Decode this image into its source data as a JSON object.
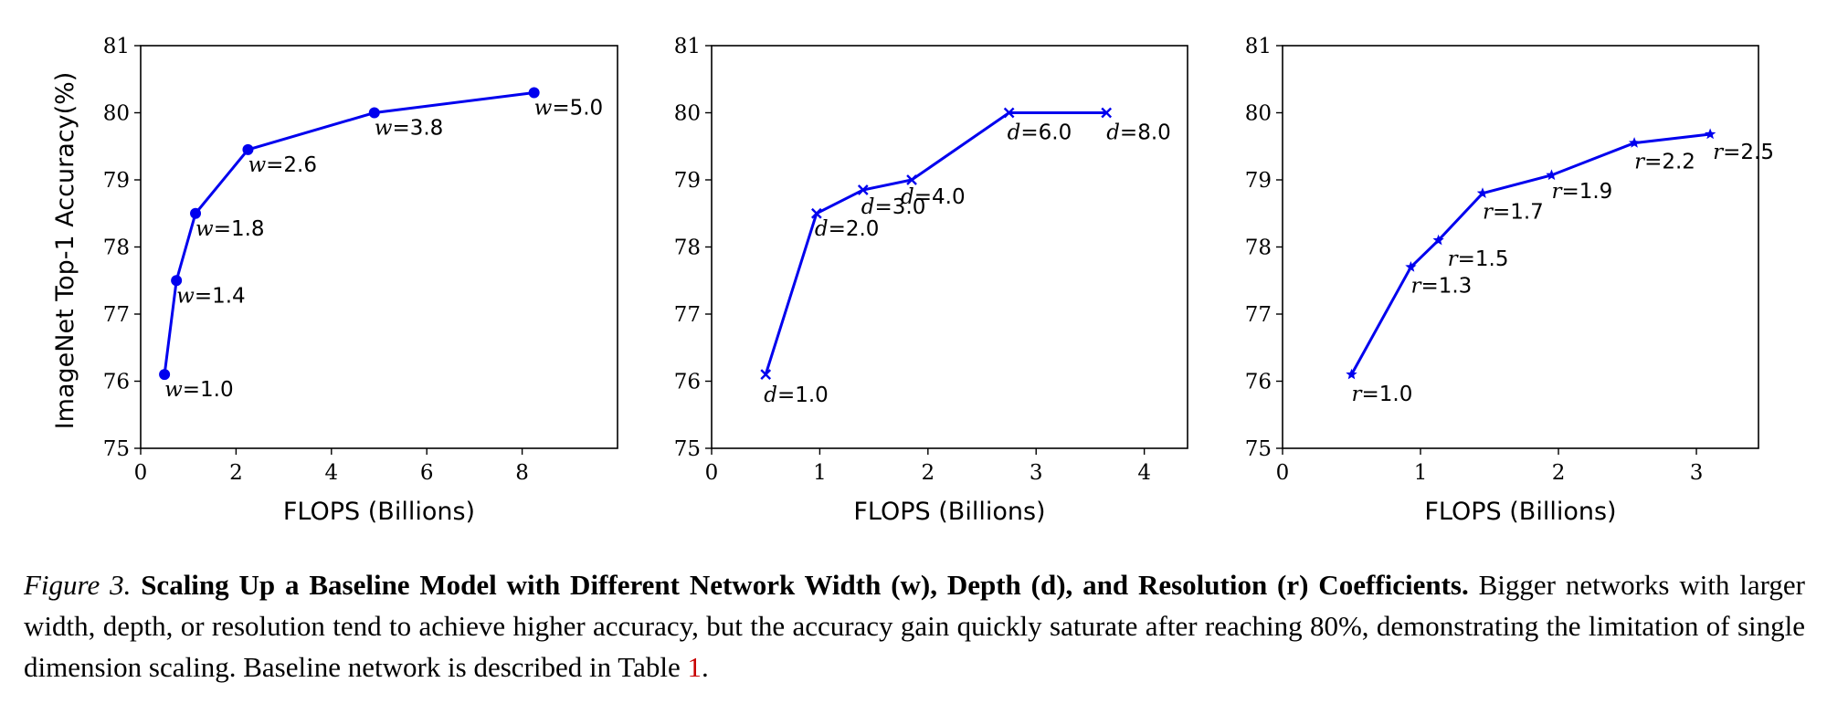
{
  "chart_data": [
    {
      "type": "line",
      "marker": "circle",
      "xlabel": "FLOPS (Billions)",
      "ylabel": "ImageNet Top-1 Accuracy(%)",
      "xlim": [
        0,
        10
      ],
      "ylim": [
        75,
        81
      ],
      "xticks": [
        0,
        2,
        4,
        6,
        8
      ],
      "yticks": [
        75,
        76,
        77,
        78,
        79,
        80,
        81
      ],
      "color": "#0000ee",
      "points": [
        {
          "x": 0.5,
          "y": 76.1,
          "var": "w",
          "label": "=1.0"
        },
        {
          "x": 0.75,
          "y": 77.5,
          "var": "w",
          "label": "=1.4"
        },
        {
          "x": 1.15,
          "y": 78.5,
          "var": "w",
          "label": "=1.8"
        },
        {
          "x": 2.25,
          "y": 79.45,
          "var": "w",
          "label": "=2.6"
        },
        {
          "x": 4.9,
          "y": 80.0,
          "var": "w",
          "label": "=3.8"
        },
        {
          "x": 8.25,
          "y": 80.3,
          "var": "w",
          "label": "=5.0"
        }
      ]
    },
    {
      "type": "line",
      "marker": "x",
      "xlabel": "FLOPS (Billions)",
      "ylabel": "",
      "xlim": [
        0,
        4.4
      ],
      "ylim": [
        75,
        81
      ],
      "xticks": [
        0,
        1,
        2,
        3,
        4
      ],
      "yticks": [
        75,
        76,
        77,
        78,
        79,
        80,
        81
      ],
      "color": "#0000ee",
      "points": [
        {
          "x": 0.5,
          "y": 76.1,
          "var": "d",
          "label": "=1.0"
        },
        {
          "x": 0.97,
          "y": 78.5,
          "var": "d",
          "label": "=2.0"
        },
        {
          "x": 1.4,
          "y": 78.85,
          "var": "d",
          "label": "=3.0"
        },
        {
          "x": 1.85,
          "y": 79.0,
          "var": "d",
          "label": "=4.0"
        },
        {
          "x": 2.75,
          "y": 80.0,
          "var": "d",
          "label": "=6.0"
        },
        {
          "x": 3.65,
          "y": 80.0,
          "var": "d",
          "label": "=8.0"
        }
      ]
    },
    {
      "type": "line",
      "marker": "star",
      "xlabel": "FLOPS (Billions)",
      "ylabel": "",
      "xlim": [
        0,
        3.45
      ],
      "ylim": [
        75,
        81
      ],
      "xticks": [
        0,
        1,
        2,
        3
      ],
      "yticks": [
        75,
        76,
        77,
        78,
        79,
        80,
        81
      ],
      "color": "#0000ee",
      "points": [
        {
          "x": 0.5,
          "y": 76.1,
          "var": "r",
          "label": "=1.0"
        },
        {
          "x": 0.93,
          "y": 77.7,
          "var": "r",
          "label": "=1.3"
        },
        {
          "x": 1.13,
          "y": 78.1,
          "var": "r",
          "label": "=1.5"
        },
        {
          "x": 1.45,
          "y": 78.8,
          "var": "r",
          "label": "=1.7"
        },
        {
          "x": 1.95,
          "y": 79.07,
          "var": "r",
          "label": "=1.9"
        },
        {
          "x": 2.55,
          "y": 79.55,
          "var": "r",
          "label": "=2.2"
        },
        {
          "x": 3.1,
          "y": 79.68,
          "var": "r",
          "label": "=2.5"
        }
      ]
    }
  ],
  "caption": {
    "figure_label": "Figure 3.",
    "title": "Scaling Up a Baseline Model with Different Network Width (w), Depth (d), and Resolution (r) Coefficients.",
    "body": "Bigger networks with larger width, depth, or resolution tend to achieve higher accuracy, but the accuracy gain quickly saturate after reaching 80%, demonstrating the limitation of single dimension scaling. Baseline network is described in Table",
    "table_ref": "1",
    "end": "."
  }
}
